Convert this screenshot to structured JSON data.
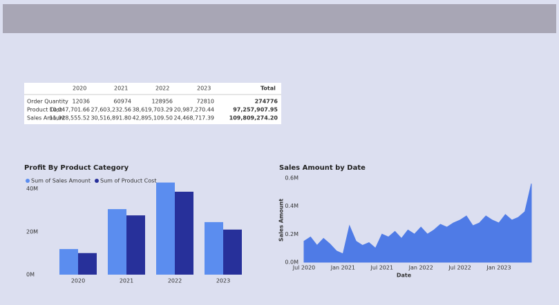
{
  "table": {
    "columns": [
      "2020",
      "2021",
      "2022",
      "2023",
      "Total"
    ],
    "rows": [
      {
        "label": "Order Quantity",
        "cells": [
          "12036",
          "60974",
          "128956",
          "72810",
          "274776"
        ]
      },
      {
        "label": "Product Cost",
        "cells": [
          "10,047,701.66",
          "27,603,232.56",
          "38,619,703.29",
          "20,987,270.44",
          "97,257,907.95"
        ]
      },
      {
        "label": "Sales Amount",
        "cells": [
          "11,928,555.52",
          "30,516,891.80",
          "42,895,109.50",
          "24,468,717.39",
          "109,809,274.20"
        ]
      }
    ]
  },
  "chart_data": [
    {
      "type": "bar",
      "title": "Profit By Product Category",
      "categories": [
        "2020",
        "2021",
        "2022",
        "2023"
      ],
      "series": [
        {
          "name": "Sum of Sales Amount",
          "color": "#5b8def",
          "values": [
            11928555.52,
            30516891.8,
            42895109.5,
            24468717.39
          ]
        },
        {
          "name": "Sum of Product Cost",
          "color": "#27309a",
          "values": [
            10047701.66,
            27603232.56,
            38619703.29,
            20987270.44
          ]
        }
      ],
      "ylim": [
        0,
        45000000
      ],
      "yticks": [
        {
          "value": 0,
          "label": "0M"
        },
        {
          "value": 20000000,
          "label": "20M"
        },
        {
          "value": 40000000,
          "label": "40M"
        }
      ]
    },
    {
      "type": "area",
      "title": "Sales Amount by Date",
      "x_label": "Date",
      "y_label": "Sales Amount",
      "color": "#4f7be6",
      "x": [
        "2020-07",
        "2020-08",
        "2020-09",
        "2020-10",
        "2020-11",
        "2020-12",
        "2021-01",
        "2021-02",
        "2021-03",
        "2021-04",
        "2021-05",
        "2021-06",
        "2021-07",
        "2021-08",
        "2021-09",
        "2021-10",
        "2021-11",
        "2021-12",
        "2022-01",
        "2022-02",
        "2022-03",
        "2022-04",
        "2022-05",
        "2022-06",
        "2022-07",
        "2022-08",
        "2022-09",
        "2022-10",
        "2022-11",
        "2022-12",
        "2023-01",
        "2023-02",
        "2023-03",
        "2023-04",
        "2023-05",
        "2023-06"
      ],
      "values": [
        150000,
        180000,
        120000,
        170000,
        130000,
        80000,
        60000,
        260000,
        150000,
        120000,
        140000,
        100000,
        200000,
        180000,
        220000,
        170000,
        230000,
        200000,
        250000,
        200000,
        230000,
        270000,
        250000,
        280000,
        300000,
        330000,
        260000,
        280000,
        330000,
        300000,
        280000,
        340000,
        300000,
        320000,
        360000,
        560000
      ],
      "xticks": [
        {
          "value": "2020-07",
          "label": "Jul 2020"
        },
        {
          "value": "2021-01",
          "label": "Jan 2021"
        },
        {
          "value": "2021-07",
          "label": "Jul 2021"
        },
        {
          "value": "2022-01",
          "label": "Jan 2022"
        },
        {
          "value": "2022-07",
          "label": "Jul 2022"
        },
        {
          "value": "2023-01",
          "label": "Jan 2023"
        }
      ],
      "ylim": [
        0,
        600000
      ],
      "yticks": [
        {
          "value": 0,
          "label": "0.0M"
        },
        {
          "value": 200000,
          "label": "0.2M"
        },
        {
          "value": 400000,
          "label": "0.4M"
        },
        {
          "value": 600000,
          "label": "0.6M"
        }
      ]
    }
  ]
}
